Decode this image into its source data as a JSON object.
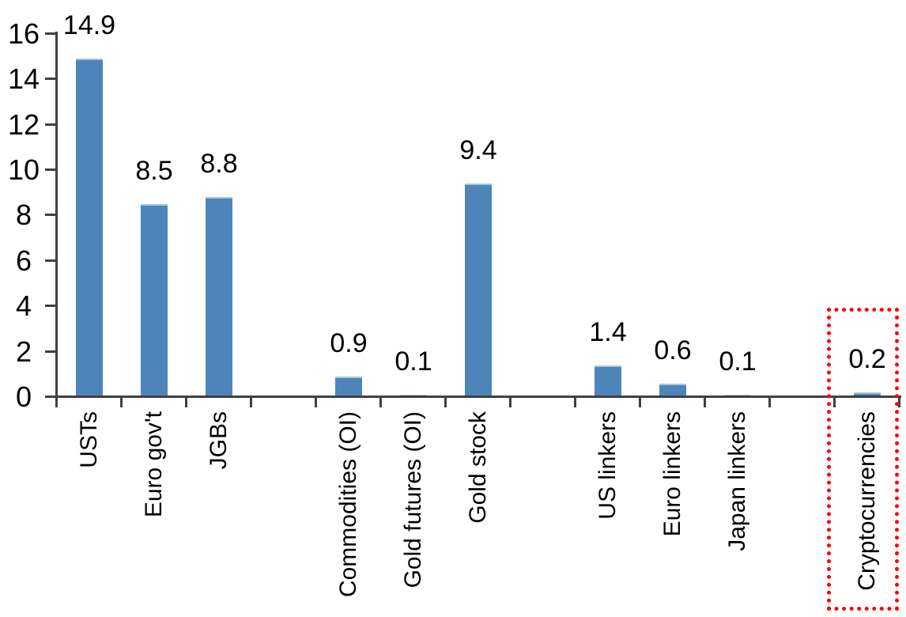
{
  "chart_data": {
    "type": "bar",
    "title": "",
    "xlabel": "",
    "ylabel": "",
    "grid": "off",
    "legend": "none",
    "bar_color": "#4D85BB",
    "axis_color": "#404040",
    "y_axis": {
      "min": 0,
      "max": 16,
      "tick_step": 2,
      "ticks": [
        0,
        2,
        4,
        6,
        8,
        10,
        12,
        14,
        16
      ],
      "tick_labels": [
        "0",
        "2",
        "4",
        "6",
        "8",
        "10",
        "12",
        "14",
        "16"
      ]
    },
    "n_slots": 13,
    "items": [
      {
        "label": "USTs",
        "value": 14.9,
        "value_label": "14.9",
        "slot": 0,
        "highlighted": false
      },
      {
        "label": "Euro gov't",
        "value": 8.5,
        "value_label": "8.5",
        "slot": 1,
        "highlighted": false
      },
      {
        "label": "JGBs",
        "value": 8.8,
        "value_label": "8.8",
        "slot": 2,
        "highlighted": false
      },
      {
        "label": "Commodities (OI)",
        "value": 0.9,
        "value_label": "0.9",
        "slot": 4,
        "highlighted": false
      },
      {
        "label": "Gold futures (OI)",
        "value": 0.1,
        "value_label": "0.1",
        "slot": 5,
        "highlighted": false
      },
      {
        "label": "Gold stock",
        "value": 9.4,
        "value_label": "9.4",
        "slot": 6,
        "highlighted": false
      },
      {
        "label": "US linkers",
        "value": 1.4,
        "value_label": "1.4",
        "slot": 8,
        "highlighted": false
      },
      {
        "label": "Euro linkers",
        "value": 0.6,
        "value_label": "0.6",
        "slot": 9,
        "highlighted": false
      },
      {
        "label": "Japan linkers",
        "value": 0.1,
        "value_label": "0.1",
        "slot": 10,
        "highlighted": false
      },
      {
        "label": "Cryptocurrencies",
        "value": 0.2,
        "value_label": "0.2",
        "slot": 12,
        "highlighted": true
      }
    ],
    "highlight": {
      "target": "Cryptocurrencies",
      "border_color": "#FF0000",
      "border_style": "dotted"
    }
  }
}
